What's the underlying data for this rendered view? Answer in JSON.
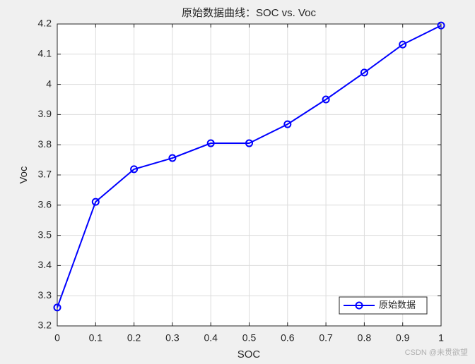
{
  "chart_data": {
    "type": "line",
    "title": "原始数据曲线：SOC vs. Voc",
    "x_label": "SOC",
    "y_label": "Voc",
    "x": [
      0,
      0.1,
      0.2,
      0.3,
      0.4,
      0.5,
      0.6,
      0.7,
      0.8,
      0.9,
      1
    ],
    "series": [
      {
        "name": "原始数据",
        "color": "#0000ff",
        "values": [
          3.261,
          3.611,
          3.719,
          3.756,
          3.805,
          3.805,
          3.868,
          3.95,
          4.039,
          4.132,
          4.195
        ]
      }
    ],
    "xlim": [
      0,
      1
    ],
    "xticks": [
      0,
      0.1,
      0.2,
      0.3,
      0.4,
      0.5,
      0.6,
      0.7,
      0.8,
      0.9,
      1
    ],
    "ylim": [
      3.2,
      4.2
    ],
    "yticks": [
      3.2,
      3.3,
      3.4,
      3.5,
      3.6,
      3.7,
      3.8,
      3.9,
      4,
      4.1,
      4.2
    ],
    "grid": true,
    "legend": "lower right",
    "marker": "circle",
    "watermark": "CSDN @未贯欲望"
  }
}
